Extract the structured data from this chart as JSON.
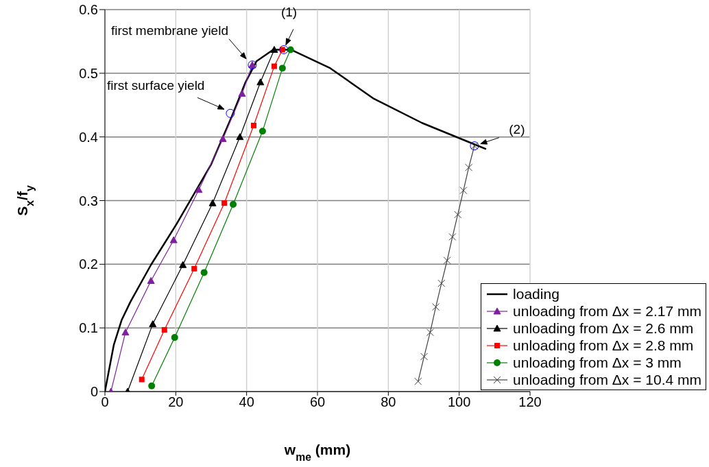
{
  "chart_data": {
    "type": "line",
    "xlabel": "w$_{me}$ (mm)",
    "ylabel": "S$_{x}$/f$_{y}$",
    "xlim": [
      0,
      120
    ],
    "xticks": [
      0,
      20,
      40,
      60,
      80,
      100,
      120
    ],
    "ylim": [
      0,
      0.6
    ],
    "yticks": [
      0,
      0.1,
      0.2,
      0.3,
      0.4,
      0.5,
      0.6
    ],
    "grid": true,
    "legend": "bottom right",
    "series": [
      {
        "name": "loading",
        "color": "#000000",
        "marker": "none",
        "x": [
          0,
          2.5,
          4.7,
          7.2,
          13,
          20.2,
          24.7,
          30,
          35.8,
          39.7,
          42.8,
          47.5,
          52.5,
          63.6,
          75.9,
          89.5,
          104.9,
          107.6
        ],
        "values": [
          0,
          0.073,
          0.112,
          0.141,
          0.199,
          0.263,
          0.306,
          0.357,
          0.432,
          0.486,
          0.519,
          0.537,
          0.537,
          0.508,
          0.46,
          0.422,
          0.387,
          0.381
        ]
      },
      {
        "name": "unloading from Δx = 2.17 mm",
        "color": "#7f1f9f",
        "marker": "triangle",
        "x": [
          1.7,
          5.8,
          13,
          19.4,
          26.5,
          33.3,
          38.7,
          41.6
        ],
        "values": [
          0,
          0.093,
          0.174,
          0.238,
          0.317,
          0.397,
          0.468,
          0.513
        ]
      },
      {
        "name": "unloading from Δx = 2.6 mm",
        "color": "#000000",
        "marker": "triangle",
        "x": [
          6.4,
          13.5,
          22,
          30.4,
          38.1,
          43.9,
          47.8
        ],
        "values": [
          0,
          0.106,
          0.199,
          0.296,
          0.4,
          0.486,
          0.537
        ]
      },
      {
        "name": "unloading from Δx = 2.8 mm",
        "color": "#ff0000",
        "marker": "square",
        "x": [
          10.4,
          16.8,
          25.2,
          33.7,
          42,
          47.8,
          50.1
        ],
        "values": [
          0.019,
          0.097,
          0.193,
          0.296,
          0.418,
          0.511,
          0.537
        ]
      },
      {
        "name": "unloading from Δx = 3 mm",
        "color": "#008000",
        "marker": "circle",
        "x": [
          13.2,
          19.7,
          28,
          36.2,
          44.5,
          50.1,
          52.4
        ],
        "values": [
          0.009,
          0.085,
          0.187,
          0.294,
          0.409,
          0.508,
          0.537
        ]
      },
      {
        "name": "unloading from Δx = 10.4 mm",
        "color": "#404040",
        "marker": "cross",
        "x": [
          88.4,
          90.1,
          91.8,
          93.4,
          95,
          96.6,
          98.1,
          99.6,
          101.2,
          102.7,
          104.3
        ],
        "values": [
          0.016,
          0.055,
          0.093,
          0.133,
          0.17,
          0.206,
          0.243,
          0.278,
          0.316,
          0.352,
          0.386
        ]
      }
    ],
    "annotations": [
      {
        "text": "first membrane yield",
        "x": 41.6,
        "y": 0.513
      },
      {
        "text": "first surface yield",
        "x": 35.4,
        "y": 0.437
      },
      {
        "text": "(1)",
        "x": 50.5,
        "y": 0.537
      },
      {
        "text": "(2)",
        "x": 104.3,
        "y": 0.386
      }
    ]
  }
}
